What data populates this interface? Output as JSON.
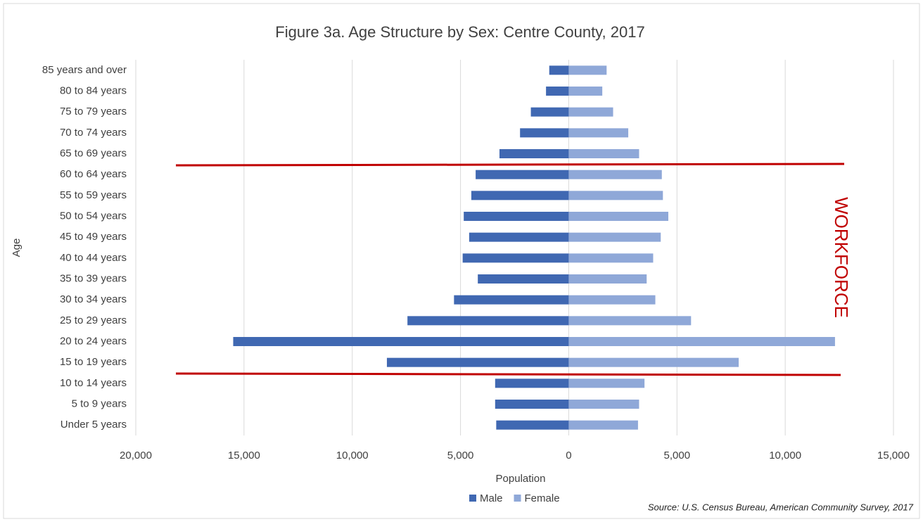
{
  "chart_data": {
    "type": "pyramid_bar",
    "title": "Figure 3a. Age Structure by Sex: Centre County, 2017",
    "x_label": "Population",
    "y_label": "Age",
    "annotation": "WORKFORCE",
    "source": "Source: U.S. Census Bureau, American Community Survey, 2017",
    "categories": [
      "85 years and over",
      "80 to 84 years",
      "75 to 79 years",
      "70 to 74 years",
      "65 to 69 years",
      "60 to 64 years",
      "55 to 59 years",
      "50 to 54 years",
      "45 to 49 years",
      "40 to 44 years",
      "35 to 39 years",
      "30 to 34 years",
      "25 to 29 years",
      "20 to 24 years",
      "15 to 19 years",
      "10 to 14 years",
      "5 to 9 years",
      "Under 5 years"
    ],
    "series": [
      {
        "name": "Male",
        "color": "#4068b2",
        "values": [
          -900,
          -1050,
          -1750,
          -2250,
          -3200,
          -4300,
          -4500,
          -4850,
          -4600,
          -4900,
          -4200,
          -5300,
          -7450,
          -15500,
          -8400,
          -3400,
          -3400,
          -3350
        ]
      },
      {
        "name": "Female",
        "color": "#8fa8d8",
        "values": [
          1750,
          1550,
          2050,
          2750,
          3250,
          4300,
          4350,
          4600,
          4250,
          3900,
          3600,
          4000,
          5650,
          12300,
          7850,
          3500,
          3250,
          3200
        ]
      }
    ],
    "xlim": [
      -20000,
      15000
    ],
    "xticks": [
      {
        "value": -20000,
        "label": "20,000"
      },
      {
        "value": -15000,
        "label": "15,000"
      },
      {
        "value": -10000,
        "label": "10,000"
      },
      {
        "value": -5000,
        "label": "5,000"
      },
      0,
      {
        "value": 5000,
        "label": "5,000"
      },
      {
        "value": 10000,
        "label": "10,000"
      },
      {
        "value": 15000,
        "label": "15,000"
      }
    ],
    "grid": true,
    "legend": "bottom"
  }
}
